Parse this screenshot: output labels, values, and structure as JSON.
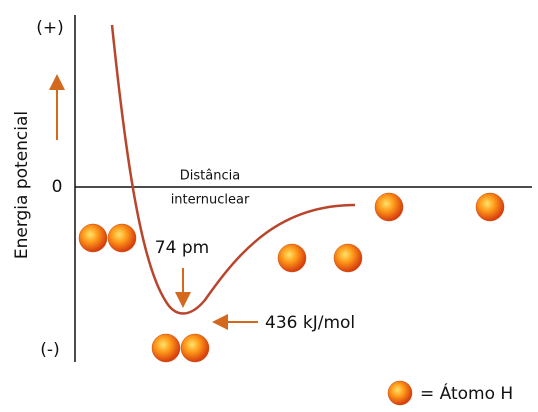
{
  "axes": {
    "top_label": "(+)",
    "bottom_label": "(-)",
    "zero_label": "0",
    "y_label": "Energia potencial",
    "x_label": [
      "Distância",
      "internuclear"
    ]
  },
  "annotations": {
    "bond_length": "74 pm",
    "bond_energy": "436 kJ/mol"
  },
  "legend": {
    "label": "= Átomo H"
  }
}
